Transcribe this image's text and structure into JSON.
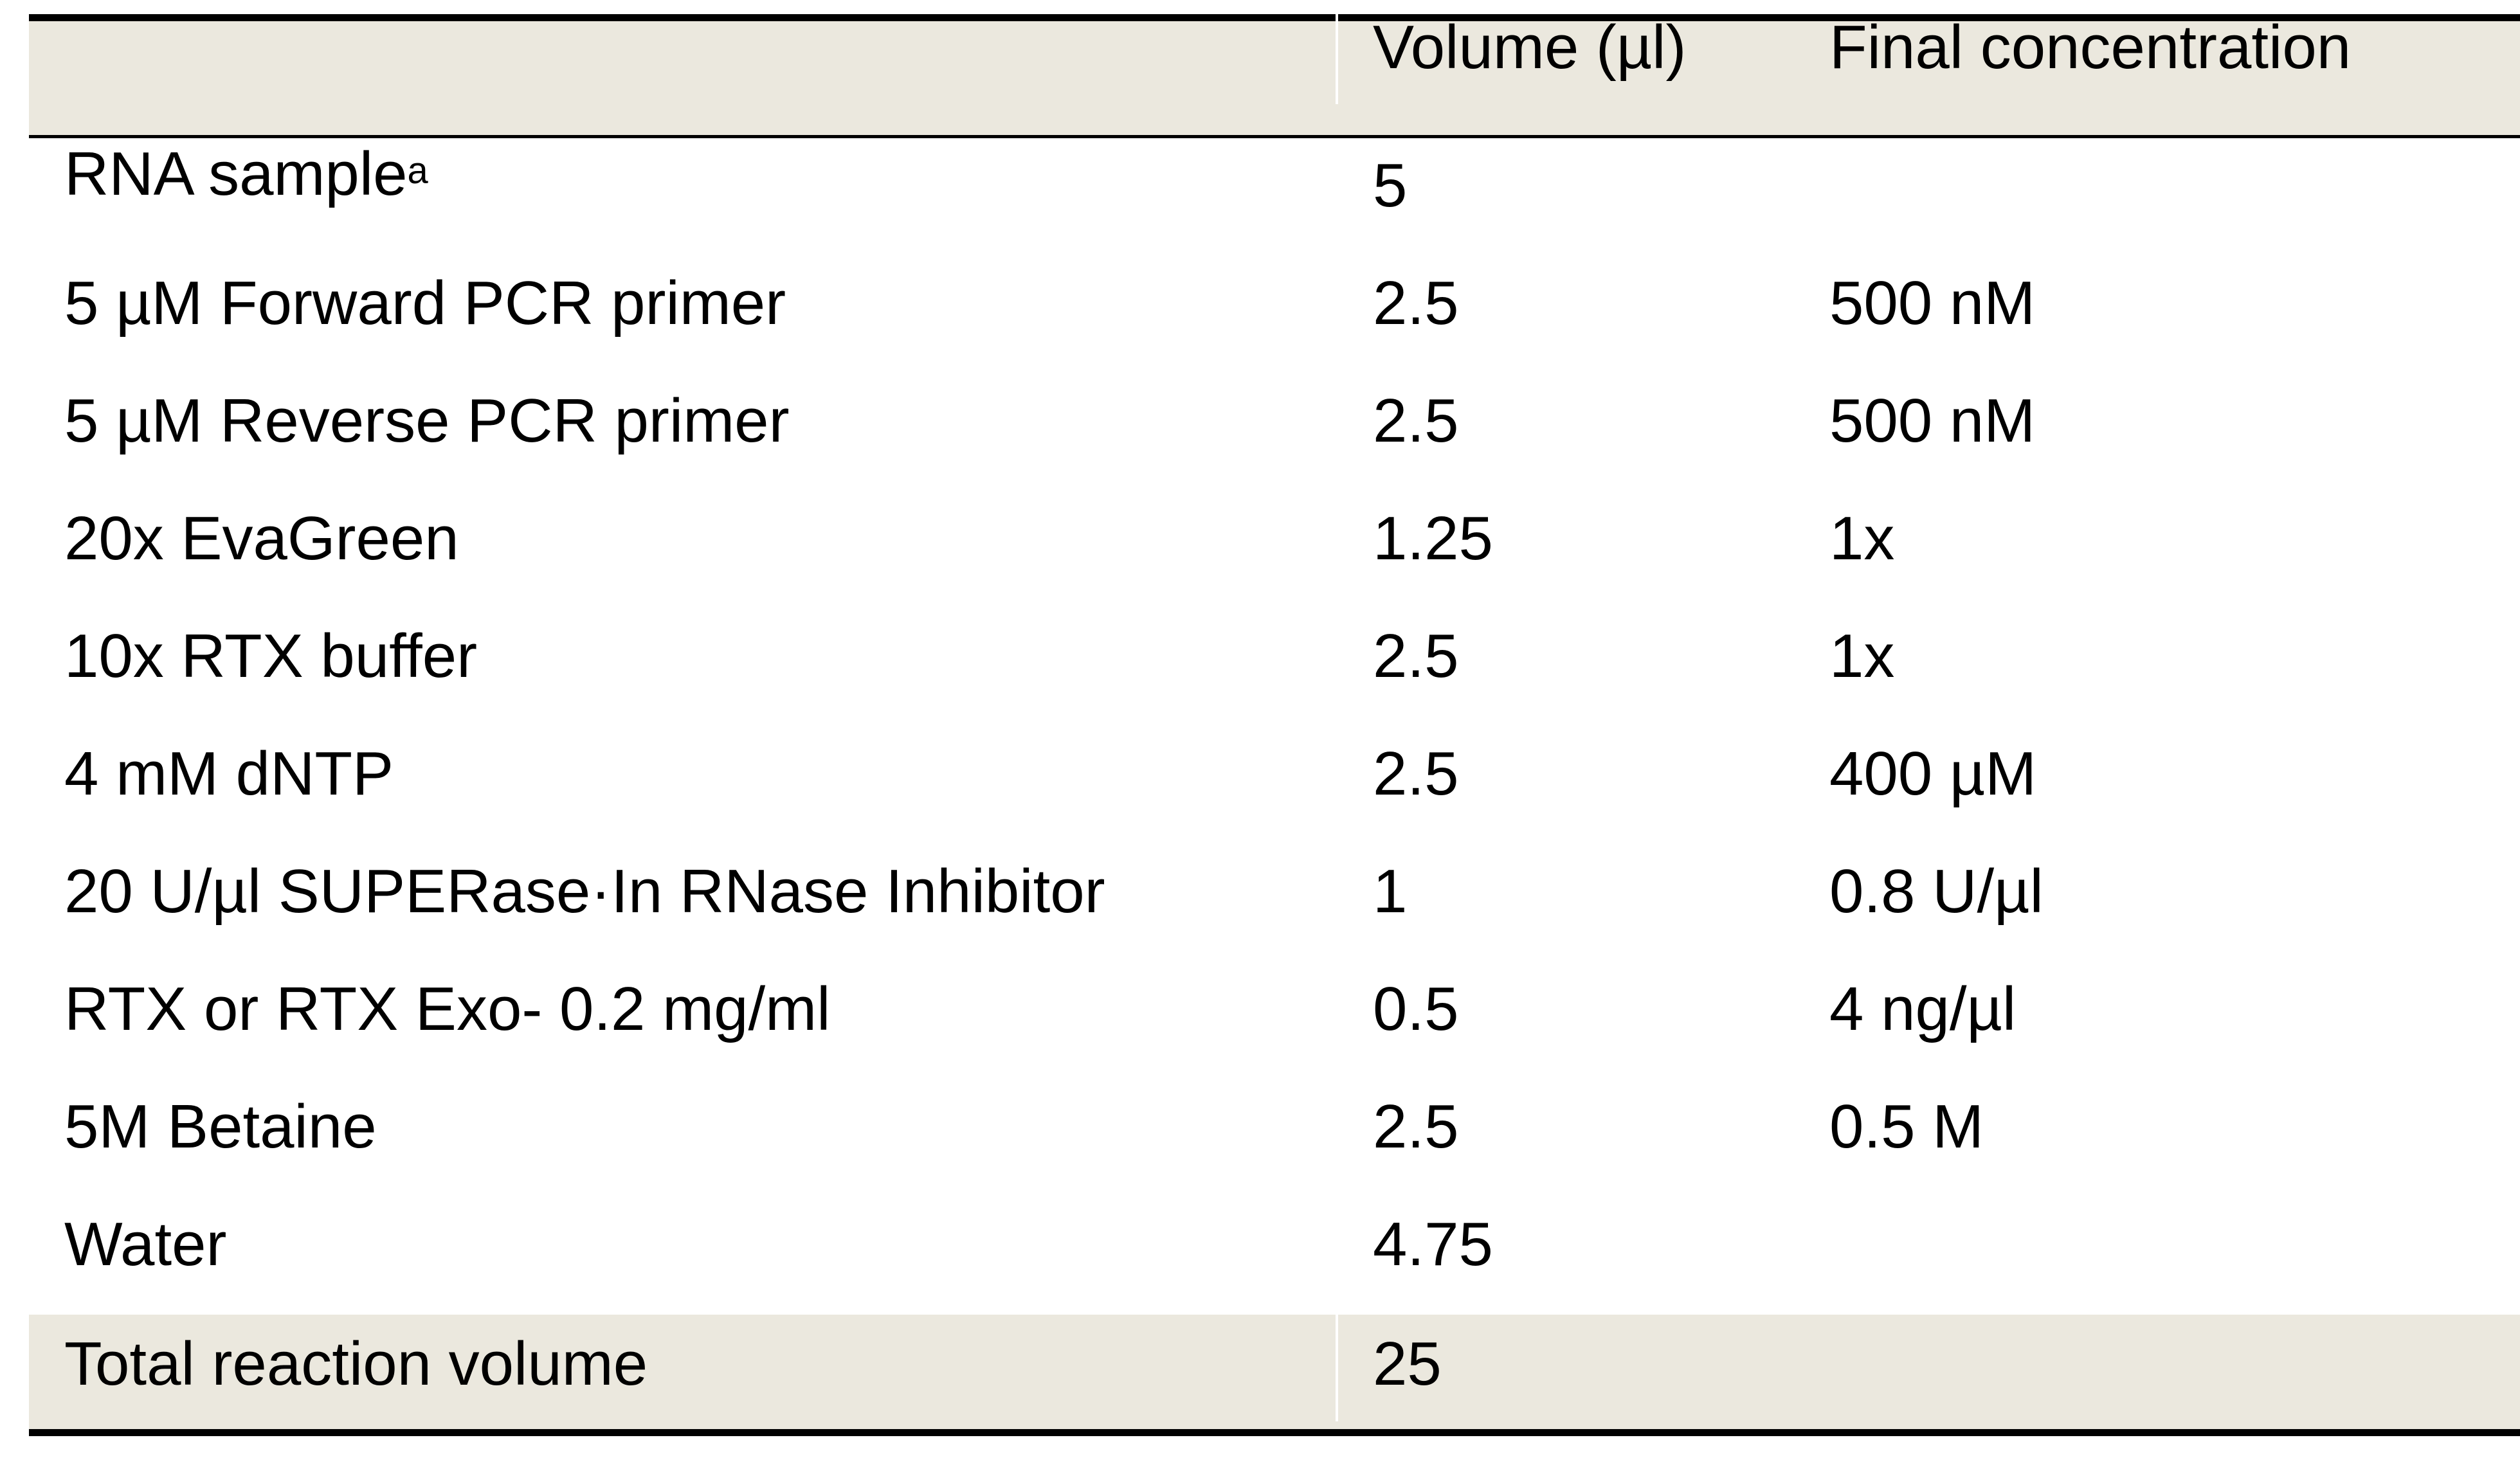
{
  "table": {
    "headers": [
      "",
      "Volume (µl)",
      "Final concentration"
    ],
    "rows": [
      {
        "component": "RNA sample",
        "component_sup": "a",
        "volume": "5",
        "final": ""
      },
      {
        "component": "5 µM Forward PCR primer",
        "component_sup": "",
        "volume": "2.5",
        "final": "500 nM"
      },
      {
        "component": "5 µM Reverse PCR primer",
        "component_sup": "",
        "volume": "2.5",
        "final": "500 nM"
      },
      {
        "component": "20x EvaGreen",
        "component_sup": "",
        "volume": "1.25",
        "final": "1x"
      },
      {
        "component": "10x RTX buffer",
        "component_sup": "",
        "volume": "2.5",
        "final": "1x"
      },
      {
        "component": "4 mM dNTP",
        "component_sup": "",
        "volume": "2.5",
        "final": "400 µM"
      },
      {
        "component": "20 U/µl SUPERase·In RNase Inhibitor",
        "component_sup": "",
        "volume": "1",
        "final": "0.8 U/µl"
      },
      {
        "component": "RTX or RTX Exo- 0.2 mg/ml",
        "component_sup": "",
        "volume": "0.5",
        "final": "4 ng/µl"
      },
      {
        "component": "5M Betaine",
        "component_sup": "",
        "volume": "2.5",
        "final": "0.5 M"
      },
      {
        "component": "Water",
        "component_sup": "",
        "volume": "4.75",
        "final": ""
      }
    ],
    "total": {
      "component": "Total reaction volume",
      "volume": "25",
      "final": ""
    },
    "colors": {
      "header_bg": "#ebe8de",
      "rule": "#000000"
    }
  }
}
